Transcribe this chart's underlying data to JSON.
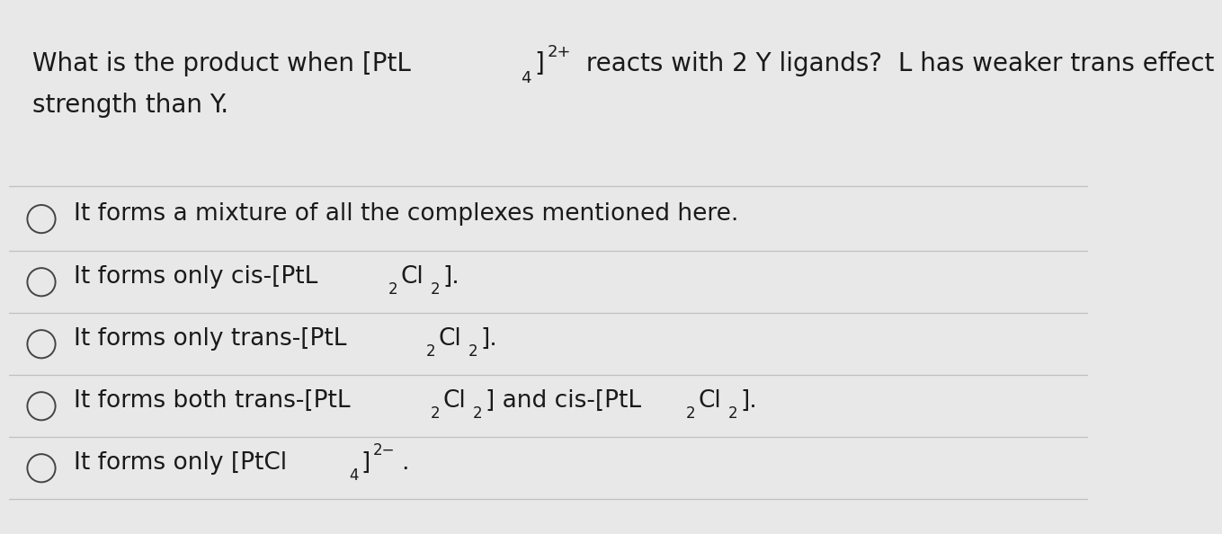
{
  "background_color": "#e8e8e8",
  "text_color": "#1a1a1a",
  "line_color": "#c0c0c0",
  "font_size_question": 20,
  "font_size_options": 19,
  "circle_color": "#444444",
  "q_line1_parts": [
    {
      "text": "What is the product when [PtL",
      "style": "normal",
      "size": 20
    },
    {
      "text": "4",
      "style": "sub",
      "size": 13
    },
    {
      "text": "]",
      "style": "normal",
      "size": 20
    },
    {
      "text": "2+",
      "style": "sup",
      "size": 13
    },
    {
      "text": " reacts with 2 Y ligands?  L has weaker trans effect",
      "style": "normal",
      "size": 20
    }
  ],
  "q_line2": "strength than Y.",
  "options": [
    {
      "parts": [
        {
          "text": "It forms a mixture of all the complexes mentioned here.",
          "style": "normal",
          "size": 19
        }
      ]
    },
    {
      "parts": [
        {
          "text": "It forms only cis-[PtL",
          "style": "normal",
          "size": 19
        },
        {
          "text": "2",
          "style": "sub",
          "size": 12
        },
        {
          "text": "Cl",
          "style": "normal",
          "size": 19
        },
        {
          "text": "2",
          "style": "sub",
          "size": 12
        },
        {
          "text": "].",
          "style": "normal",
          "size": 19
        }
      ]
    },
    {
      "parts": [
        {
          "text": "It forms only trans-[PtL",
          "style": "normal",
          "size": 19
        },
        {
          "text": "2",
          "style": "sub",
          "size": 12
        },
        {
          "text": "Cl",
          "style": "normal",
          "size": 19
        },
        {
          "text": "2",
          "style": "sub",
          "size": 12
        },
        {
          "text": "].",
          "style": "normal",
          "size": 19
        }
      ]
    },
    {
      "parts": [
        {
          "text": "It forms both trans-[PtL",
          "style": "normal",
          "size": 19
        },
        {
          "text": "2",
          "style": "sub",
          "size": 12
        },
        {
          "text": "Cl",
          "style": "normal",
          "size": 19
        },
        {
          "text": "2",
          "style": "sub",
          "size": 12
        },
        {
          "text": "] and cis-[PtL",
          "style": "normal",
          "size": 19
        },
        {
          "text": "2",
          "style": "sub",
          "size": 12
        },
        {
          "text": "Cl",
          "style": "normal",
          "size": 19
        },
        {
          "text": "2",
          "style": "sub",
          "size": 12
        },
        {
          "text": "].",
          "style": "normal",
          "size": 19
        }
      ]
    },
    {
      "parts": [
        {
          "text": "It forms only [PtCl",
          "style": "normal",
          "size": 19
        },
        {
          "text": "4",
          "style": "sub",
          "size": 12
        },
        {
          "text": "]",
          "style": "normal",
          "size": 19
        },
        {
          "text": "2−",
          "style": "sup",
          "size": 12
        },
        {
          "text": ".",
          "style": "normal",
          "size": 19
        }
      ]
    }
  ]
}
